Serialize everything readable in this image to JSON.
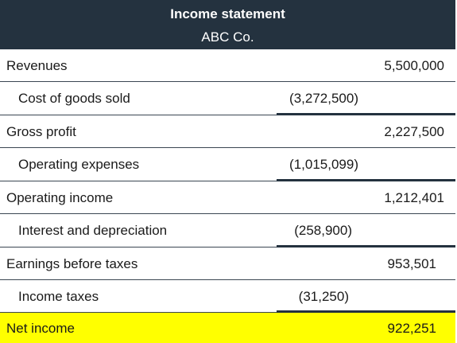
{
  "header": {
    "title": "Income statement",
    "company": "ABC Co."
  },
  "rows": [
    {
      "label": "Revenues",
      "value": "5,500,000"
    },
    {
      "label": "Cost of goods sold",
      "value": "(3,272,500)"
    },
    {
      "label": "Gross profit",
      "value": "2,227,500"
    },
    {
      "label": "Operating expenses",
      "value": "(1,015,099)"
    },
    {
      "label": "Operating income",
      "value": "1,212,401"
    },
    {
      "label": "Interest and depreciation",
      "value": "(258,900)"
    },
    {
      "label": "Earnings before taxes",
      "value": "953,501"
    },
    {
      "label": "Income taxes",
      "value": "(31,250)"
    },
    {
      "label": "Net income",
      "value": "922,251"
    }
  ],
  "colors": {
    "header_bg": "#24323f",
    "header_text": "#ffffff",
    "net_income_highlight": "#ffff00"
  }
}
